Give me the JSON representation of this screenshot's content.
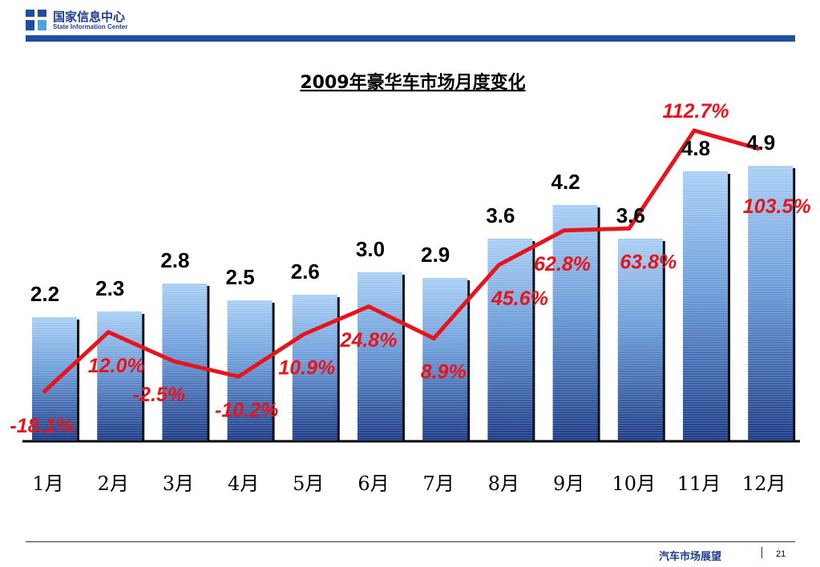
{
  "header": {
    "org_name_cn": "国家信息中心",
    "org_name_en": "State Information Center",
    "brand_color": "#1f4e9a"
  },
  "footer": {
    "section": "汽车市场展望",
    "separator": "|",
    "page_number": "21"
  },
  "chart_data": {
    "type": "bar",
    "title": "2009年豪华车市场月度变化",
    "categories": [
      "1月",
      "2月",
      "3月",
      "4月",
      "5月",
      "6月",
      "7月",
      "8月",
      "9月",
      "10月",
      "11月",
      "12月"
    ],
    "series": [
      {
        "type": "bar",
        "values": [
          2.2,
          2.3,
          2.8,
          2.5,
          2.6,
          3.0,
          2.9,
          3.6,
          4.2,
          3.6,
          4.8,
          4.9
        ],
        "labels": [
          "2.2",
          "2.3",
          "2.8",
          "2.5",
          "2.6",
          "3.0",
          "2.9",
          "3.6",
          "4.2",
          "3.6",
          "4.8",
          "4.9"
        ],
        "color_top": "#a9cff5",
        "color_bottom": "#1c3a86"
      },
      {
        "type": "line",
        "values": [
          -18.1,
          12.0,
          -2.5,
          -10.2,
          10.9,
          24.8,
          8.9,
          45.6,
          62.8,
          63.8,
          112.7,
          103.5
        ],
        "labels": [
          "-18.1%",
          "12.0%",
          "-2.5%",
          "-10.2%",
          "10.9%",
          "24.8%",
          "8.9%",
          "45.6%",
          "62.8%",
          "63.8%",
          "112.7%",
          "103.5%"
        ],
        "color": "#e8141b"
      }
    ],
    "xlabel": "",
    "ylabel": "",
    "grid": false,
    "legend": "none"
  }
}
